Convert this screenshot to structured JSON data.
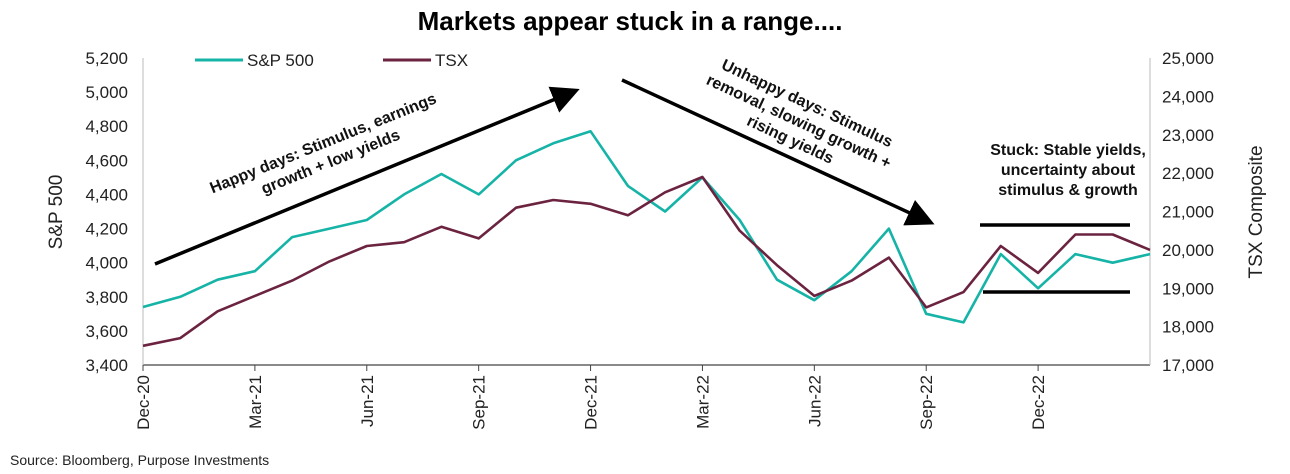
{
  "chart_data": {
    "type": "line",
    "title": "Markets appear stuck in a range....",
    "ylabel": "S&P 500",
    "y2label": "TSX Composite",
    "ylim": [
      3400,
      5200
    ],
    "y2lim": [
      17000,
      25000
    ],
    "yticks": [
      "3,400",
      "3,600",
      "3,800",
      "4,000",
      "4,200",
      "4,400",
      "4,600",
      "4,800",
      "5,000",
      "5,200"
    ],
    "y2ticks": [
      "17,000",
      "18,000",
      "19,000",
      "20,000",
      "21,000",
      "22,000",
      "23,000",
      "24,000",
      "25,000"
    ],
    "xticks": [
      "Dec-20",
      "Mar-21",
      "Jun-21",
      "Sep-21",
      "Dec-21",
      "Mar-22",
      "Jun-22",
      "Sep-22",
      "Dec-22"
    ],
    "x": [
      "Dec-20",
      "Jan-21",
      "Feb-21",
      "Mar-21",
      "Apr-21",
      "May-21",
      "Jun-21",
      "Jul-21",
      "Aug-21",
      "Sep-21",
      "Oct-21",
      "Nov-21",
      "Dec-21",
      "Jan-22",
      "Feb-22",
      "Mar-22",
      "Apr-22",
      "May-22",
      "Jun-22",
      "Jul-22",
      "Aug-22",
      "Sep-22",
      "Oct-22",
      "Nov-22",
      "Dec-22",
      "Jan-23",
      "Feb-23",
      "Mar-23"
    ],
    "series": [
      {
        "name": "S&P 500",
        "axis": "left",
        "color": "#16b3a7",
        "values": [
          3740,
          3800,
          3900,
          3950,
          4150,
          4200,
          4250,
          4400,
          4520,
          4400,
          4600,
          4700,
          4770,
          4450,
          4300,
          4500,
          4250,
          3900,
          3780,
          3950,
          4200,
          3700,
          3650,
          4050,
          3850,
          4050,
          4000,
          4050
        ]
      },
      {
        "name": "TSX",
        "axis": "right",
        "color": "#6b2340",
        "values": [
          17500,
          17700,
          18400,
          18800,
          19200,
          19700,
          20100,
          20200,
          20600,
          20300,
          21100,
          21300,
          21200,
          20900,
          21500,
          21900,
          20500,
          19600,
          18800,
          19200,
          19800,
          18500,
          18900,
          20100,
          19400,
          20400,
          20400,
          20000
        ]
      }
    ],
    "legend": "top-left",
    "grid": false,
    "annotations": [
      {
        "lines": [
          "Happy days: Stimulus, earnings",
          "growth + low yields"
        ]
      },
      {
        "lines": [
          "Unhappy days: Stimulus",
          "removal, slowing growth +",
          "rising yields"
        ]
      },
      {
        "lines": [
          "Stuck: Stable yields,",
          "uncertainty about",
          "stimulus & growth"
        ]
      }
    ]
  },
  "source": "Source: Bloomberg, Purpose Investments"
}
